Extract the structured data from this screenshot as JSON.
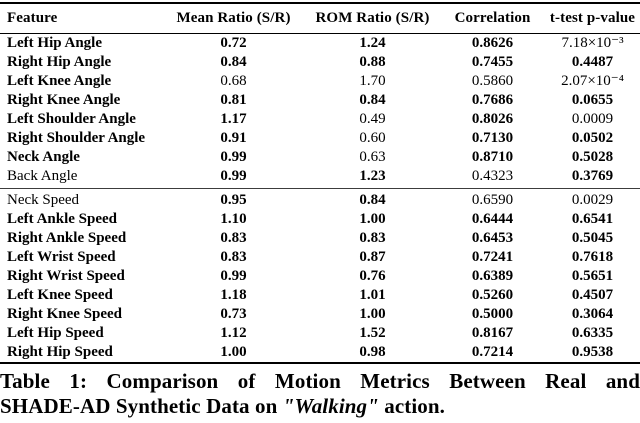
{
  "table": {
    "columns": [
      "Feature",
      "Mean Ratio (S/R)",
      "ROM Ratio (S/R)",
      "Correlation",
      "t-test p-value"
    ],
    "sections": [
      {
        "name": "angle-metrics",
        "rows": [
          {
            "cells": [
              "Left Hip Angle",
              "0.72",
              "1.24",
              "0.8626",
              "7.18×10⁻³"
            ],
            "bold": [
              true,
              true,
              true,
              true,
              false
            ]
          },
          {
            "cells": [
              "Right Hip Angle",
              "0.84",
              "0.88",
              "0.7455",
              "0.4487"
            ],
            "bold": [
              true,
              true,
              true,
              true,
              true
            ]
          },
          {
            "cells": [
              "Left Knee Angle",
              "0.68",
              "1.70",
              "0.5860",
              "2.07×10⁻⁴"
            ],
            "bold": [
              true,
              false,
              false,
              false,
              false
            ]
          },
          {
            "cells": [
              "Right Knee Angle",
              "0.81",
              "0.84",
              "0.7686",
              "0.0655"
            ],
            "bold": [
              true,
              true,
              true,
              true,
              true
            ]
          },
          {
            "cells": [
              "Left Shoulder Angle",
              "1.17",
              "0.49",
              "0.8026",
              "0.0009"
            ],
            "bold": [
              true,
              true,
              false,
              true,
              false
            ]
          },
          {
            "cells": [
              "Right Shoulder Angle",
              "0.91",
              "0.60",
              "0.7130",
              "0.0502"
            ],
            "bold": [
              true,
              true,
              false,
              true,
              true
            ]
          },
          {
            "cells": [
              "Neck Angle",
              "0.99",
              "0.63",
              "0.8710",
              "0.5028"
            ],
            "bold": [
              true,
              true,
              false,
              true,
              true
            ]
          },
          {
            "cells": [
              "Back Angle",
              "0.99",
              "1.23",
              "0.4323",
              "0.3769"
            ],
            "bold": [
              false,
              true,
              true,
              false,
              true
            ]
          }
        ]
      },
      {
        "name": "speed-metrics",
        "rows": [
          {
            "cells": [
              "Neck Speed",
              "0.95",
              "0.84",
              "0.6590",
              "0.0029"
            ],
            "bold": [
              false,
              true,
              true,
              false,
              false
            ]
          },
          {
            "cells": [
              "Left Ankle Speed",
              "1.10",
              "1.00",
              "0.6444",
              "0.6541"
            ],
            "bold": [
              true,
              true,
              true,
              true,
              true
            ]
          },
          {
            "cells": [
              "Right Ankle Speed",
              "0.83",
              "0.83",
              "0.6453",
              "0.5045"
            ],
            "bold": [
              true,
              true,
              true,
              true,
              true
            ]
          },
          {
            "cells": [
              "Left Wrist Speed",
              "0.83",
              "0.87",
              "0.7241",
              "0.7618"
            ],
            "bold": [
              true,
              true,
              true,
              true,
              true
            ]
          },
          {
            "cells": [
              "Right Wrist Speed",
              "0.99",
              "0.76",
              "0.6389",
              "0.5651"
            ],
            "bold": [
              true,
              true,
              true,
              true,
              true
            ]
          },
          {
            "cells": [
              "Left Knee Speed",
              "1.18",
              "1.01",
              "0.5260",
              "0.4507"
            ],
            "bold": [
              true,
              true,
              true,
              true,
              true
            ]
          },
          {
            "cells": [
              "Right Knee Speed",
              "0.73",
              "1.00",
              "0.5000",
              "0.3064"
            ],
            "bold": [
              true,
              true,
              true,
              true,
              true
            ]
          },
          {
            "cells": [
              "Left Hip Speed",
              "1.12",
              "1.52",
              "0.8167",
              "0.6335"
            ],
            "bold": [
              true,
              true,
              true,
              true,
              true
            ]
          },
          {
            "cells": [
              "Right Hip Speed",
              "1.00",
              "0.98",
              "0.7214",
              "0.9538"
            ],
            "bold": [
              true,
              true,
              true,
              true,
              true
            ]
          }
        ]
      }
    ]
  },
  "caption": {
    "line1": "Table 1: Comparison of Motion Metrics Between Real and",
    "line2_prefix": "SHADE-AD Synthetic Data on ",
    "line2_action": "\"Walking\"",
    "line2_suffix": " action."
  },
  "colors": {
    "text": "#000000",
    "heavy_rule": "#000000",
    "mid_rule": "#3c3c3c",
    "background": "#ffffff"
  }
}
